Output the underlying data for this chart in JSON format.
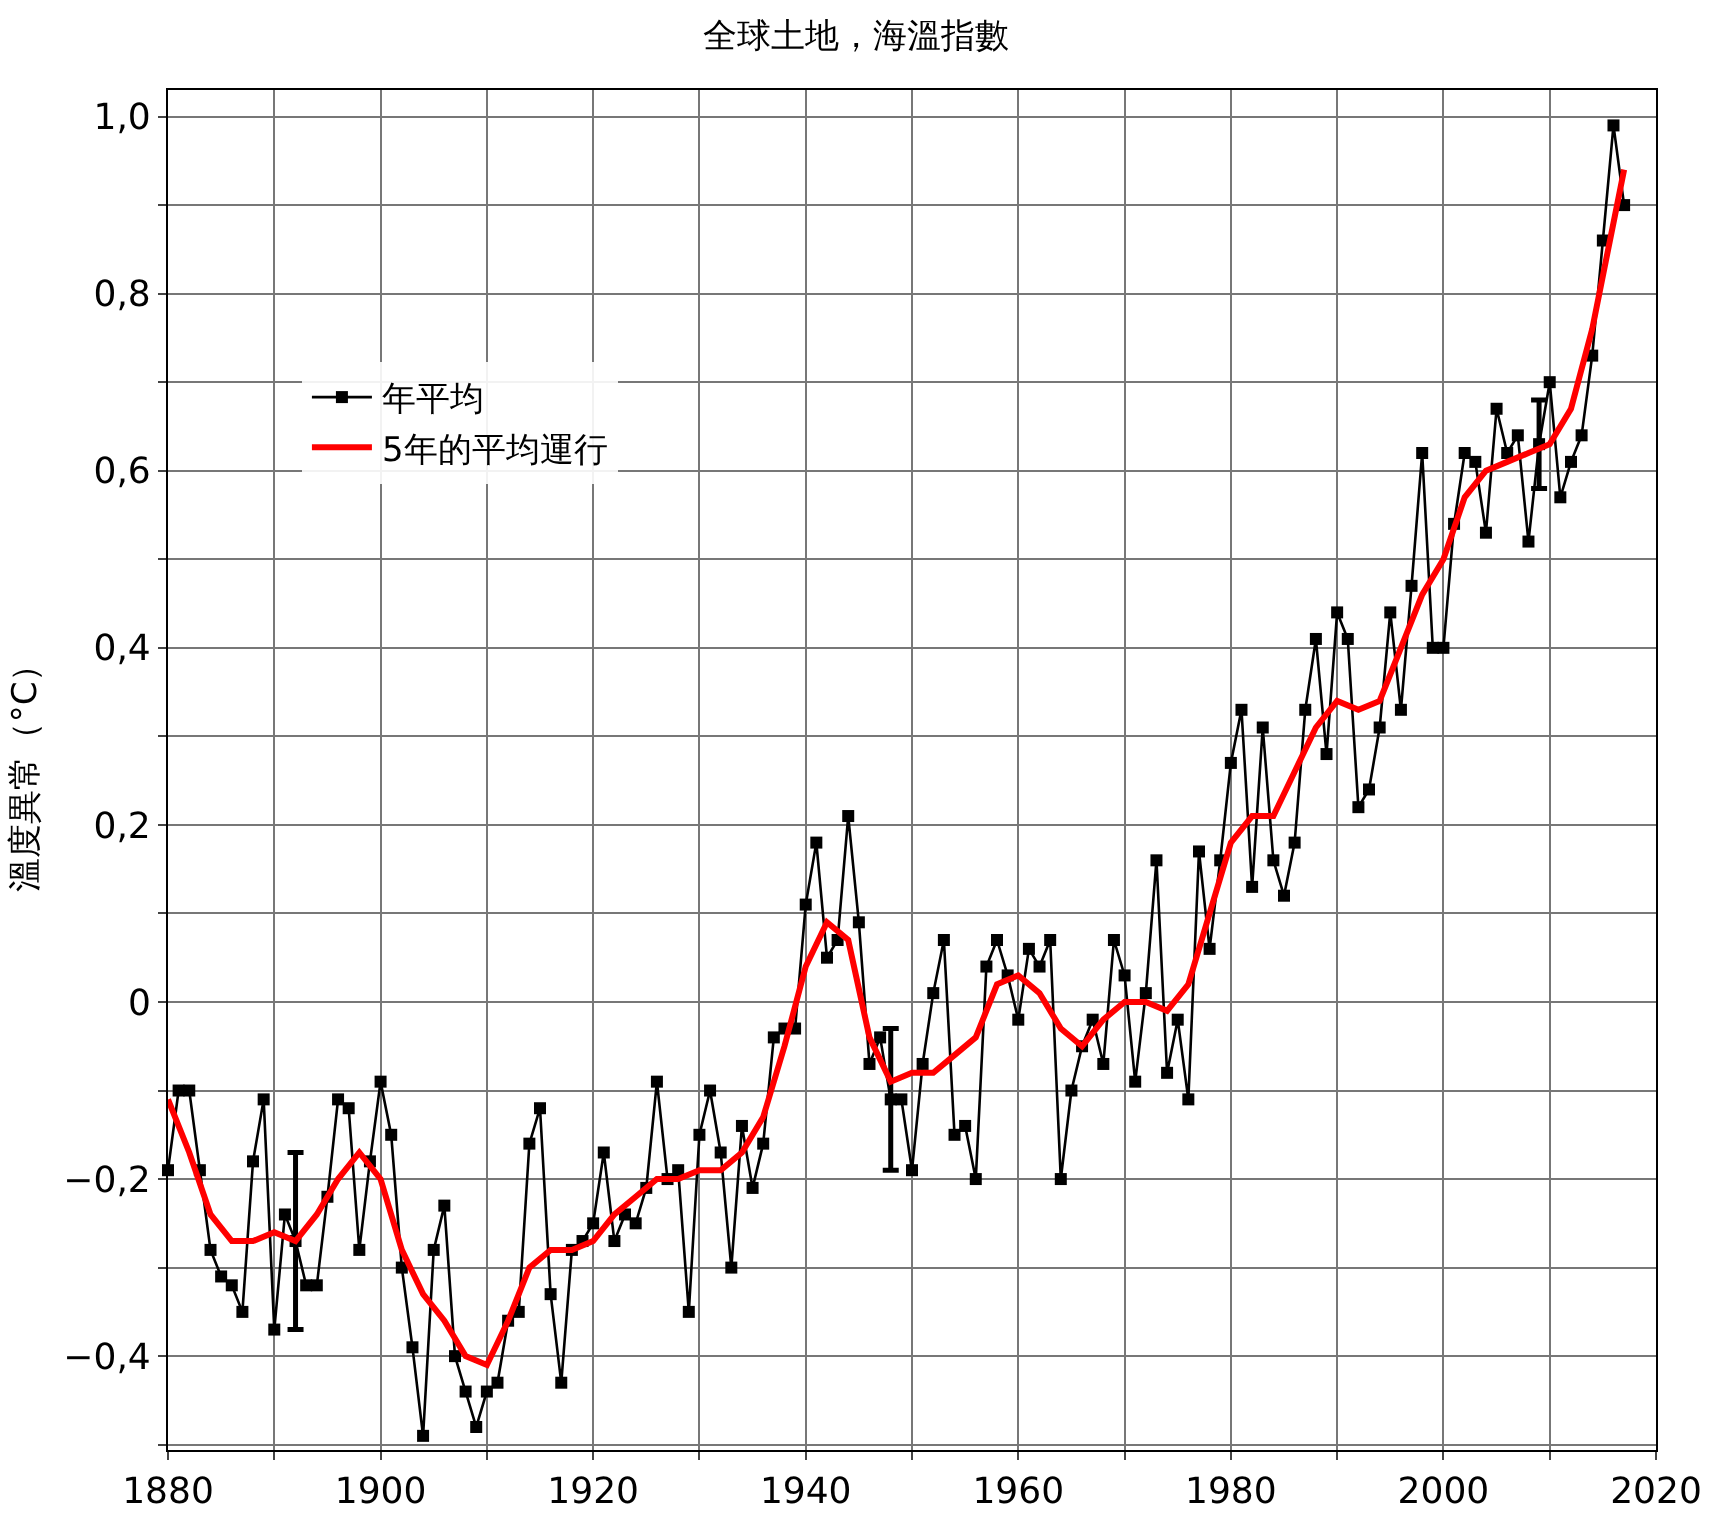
{
  "chart_data": {
    "type": "line",
    "title": "全球土地，海溫指數",
    "ylabel": "溫度異常（°C）",
    "xlim": [
      1880,
      2020
    ],
    "ylim": [
      -0.506,
      1.03
    ],
    "xticks": [
      1880,
      {
        "value": 1890,
        "label": null
      },
      1900,
      {
        "value": 1910,
        "label": null
      },
      1920,
      {
        "value": 1930,
        "label": null
      },
      1940,
      {
        "value": 1950,
        "label": null
      },
      1960,
      {
        "value": 1970,
        "label": null
      },
      1980,
      {
        "value": 1990,
        "label": null
      },
      2000,
      {
        "value": 2010,
        "label": null
      },
      2020
    ],
    "yticks": [
      {
        "value": -0.5,
        "label": null
      },
      {
        "value": -0.4,
        "label": "−0,4"
      },
      {
        "value": -0.3,
        "label": null
      },
      {
        "value": -0.2,
        "label": "−0,2"
      },
      {
        "value": -0.1,
        "label": null
      },
      {
        "value": 0,
        "label": "0"
      },
      {
        "value": 0.1,
        "label": null
      },
      {
        "value": 0.2,
        "label": "0,2"
      },
      {
        "value": 0.3,
        "label": null
      },
      {
        "value": 0.4,
        "label": "0,4"
      },
      {
        "value": 0.5,
        "label": null
      },
      {
        "value": 0.6,
        "label": "0,6"
      },
      {
        "value": 0.7,
        "label": null
      },
      {
        "value": 0.8,
        "label": "0,8"
      },
      {
        "value": 0.9,
        "label": null
      },
      {
        "value": 1.0,
        "label": "1,0"
      }
    ],
    "grid": true,
    "legend": "top left",
    "line_style": "solid",
    "series": [
      {
        "name": "年平均",
        "color": "#000000",
        "marker": "square",
        "x": [
          1880,
          1881,
          1882,
          1883,
          1884,
          1885,
          1886,
          1887,
          1888,
          1889,
          1890,
          1891,
          1892,
          1893,
          1894,
          1895,
          1896,
          1897,
          1898,
          1899,
          1900,
          1901,
          1902,
          1903,
          1904,
          1905,
          1906,
          1907,
          1908,
          1909,
          1910,
          1911,
          1912,
          1913,
          1914,
          1915,
          1916,
          1917,
          1918,
          1919,
          1920,
          1921,
          1922,
          1923,
          1924,
          1925,
          1926,
          1927,
          1928,
          1929,
          1930,
          1931,
          1932,
          1933,
          1934,
          1935,
          1936,
          1937,
          1938,
          1939,
          1940,
          1941,
          1942,
          1943,
          1944,
          1945,
          1946,
          1947,
          1948,
          1949,
          1950,
          1951,
          1952,
          1953,
          1954,
          1955,
          1956,
          1957,
          1958,
          1959,
          1960,
          1961,
          1962,
          1963,
          1964,
          1965,
          1966,
          1967,
          1968,
          1969,
          1970,
          1971,
          1972,
          1973,
          1974,
          1975,
          1976,
          1977,
          1978,
          1979,
          1980,
          1981,
          1982,
          1983,
          1984,
          1985,
          1986,
          1987,
          1988,
          1989,
          1990,
          1991,
          1992,
          1993,
          1994,
          1995,
          1996,
          1997,
          1998,
          1999,
          2000,
          2001,
          2002,
          2003,
          2004,
          2005,
          2006,
          2007,
          2008,
          2009,
          2010,
          2011,
          2012,
          2013,
          2014,
          2015,
          2016,
          2017
        ],
        "values": [
          -0.19,
          -0.1,
          -0.1,
          -0.19,
          -0.28,
          -0.31,
          -0.32,
          -0.35,
          -0.18,
          -0.11,
          -0.37,
          -0.24,
          -0.27,
          -0.32,
          -0.32,
          -0.22,
          -0.11,
          -0.12,
          -0.28,
          -0.18,
          -0.09,
          -0.15,
          -0.3,
          -0.39,
          -0.49,
          -0.28,
          -0.23,
          -0.4,
          -0.44,
          -0.48,
          -0.44,
          -0.43,
          -0.36,
          -0.35,
          -0.16,
          -0.12,
          -0.33,
          -0.43,
          -0.28,
          -0.27,
          -0.25,
          -0.17,
          -0.27,
          -0.24,
          -0.25,
          -0.21,
          -0.09,
          -0.2,
          -0.19,
          -0.35,
          -0.15,
          -0.1,
          -0.17,
          -0.3,
          -0.14,
          -0.21,
          -0.16,
          -0.04,
          -0.03,
          -0.03,
          0.11,
          0.18,
          0.05,
          0.07,
          0.21,
          0.09,
          -0.07,
          -0.04,
          -0.11,
          -0.11,
          -0.19,
          -0.07,
          0.01,
          0.07,
          -0.15,
          -0.14,
          -0.2,
          0.04,
          0.07,
          0.03,
          -0.02,
          0.06,
          0.04,
          0.07,
          -0.2,
          -0.1,
          -0.05,
          -0.02,
          -0.07,
          0.07,
          0.03,
          -0.09,
          0.01,
          0.16,
          -0.08,
          -0.02,
          -0.11,
          0.17,
          0.06,
          0.16,
          0.27,
          0.33,
          0.13,
          0.31,
          0.16,
          0.12,
          0.18,
          0.33,
          0.41,
          0.28,
          0.44,
          0.41,
          0.22,
          0.24,
          0.31,
          0.44,
          0.33,
          0.47,
          0.62,
          0.4,
          0.4,
          0.54,
          0.62,
          0.61,
          0.53,
          0.67,
          0.62,
          0.64,
          0.52,
          0.63,
          0.7,
          0.57,
          0.61,
          0.64,
          0.73,
          0.86,
          0.99,
          0.9
        ],
        "errors": [
          null,
          null,
          null,
          null,
          null,
          null,
          null,
          null,
          null,
          null,
          null,
          null,
          0.1,
          null,
          null,
          null,
          null,
          null,
          null,
          null,
          null,
          null,
          null,
          null,
          null,
          null,
          null,
          null,
          null,
          null,
          null,
          null,
          null,
          null,
          null,
          null,
          null,
          null,
          null,
          null,
          null,
          null,
          null,
          null,
          null,
          null,
          null,
          null,
          null,
          null,
          null,
          null,
          null,
          null,
          null,
          null,
          null,
          null,
          null,
          null,
          null,
          null,
          null,
          null,
          null,
          null,
          null,
          null,
          0.08,
          null,
          null,
          null,
          null,
          null,
          null,
          null,
          null,
          null,
          null,
          null,
          null,
          null,
          null,
          null,
          null,
          null,
          null,
          null,
          null,
          null,
          null,
          null,
          null,
          null,
          null,
          null,
          null,
          null,
          null,
          null,
          null,
          null,
          null,
          null,
          null,
          null,
          null,
          null,
          null,
          null,
          null,
          null,
          null,
          null,
          null,
          null,
          null,
          null,
          null,
          null,
          null,
          null,
          null,
          null,
          null,
          null,
          null,
          null,
          null,
          0.05,
          null,
          null,
          null,
          null,
          null,
          null,
          null,
          null
        ]
      },
      {
        "name": "5年的平均運行",
        "color": "#ff0000",
        "marker": "none",
        "x": [
          1880,
          1882,
          1884,
          1886,
          1888,
          1890,
          1892,
          1894,
          1896,
          1898,
          1900,
          1902,
          1904,
          1906,
          1908,
          1910,
          1912,
          1914,
          1916,
          1918,
          1920,
          1922,
          1924,
          1926,
          1928,
          1930,
          1932,
          1934,
          1936,
          1938,
          1940,
          1942,
          1944,
          1946,
          1948,
          1950,
          1952,
          1954,
          1956,
          1958,
          1960,
          1962,
          1964,
          1966,
          1968,
          1970,
          1972,
          1974,
          1976,
          1978,
          1980,
          1982,
          1984,
          1986,
          1988,
          1990,
          1992,
          1994,
          1996,
          1998,
          2000,
          2002,
          2004,
          2006,
          2008,
          2010,
          2012,
          2014,
          2016,
          2017
        ],
        "values": [
          -0.11,
          -0.17,
          -0.24,
          -0.27,
          -0.27,
          -0.26,
          -0.27,
          -0.24,
          -0.2,
          -0.17,
          -0.2,
          -0.28,
          -0.33,
          -0.36,
          -0.4,
          -0.41,
          -0.36,
          -0.3,
          -0.28,
          -0.28,
          -0.27,
          -0.24,
          -0.22,
          -0.2,
          -0.2,
          -0.19,
          -0.19,
          -0.17,
          -0.13,
          -0.05,
          0.04,
          0.09,
          0.07,
          -0.04,
          -0.09,
          -0.08,
          -0.08,
          -0.06,
          -0.04,
          0.02,
          0.03,
          0.01,
          -0.03,
          -0.05,
          -0.02,
          0.0,
          0.0,
          -0.01,
          0.02,
          0.1,
          0.18,
          0.21,
          0.21,
          0.26,
          0.31,
          0.34,
          0.33,
          0.34,
          0.4,
          0.46,
          0.5,
          0.57,
          0.6,
          0.61,
          0.62,
          0.63,
          0.67,
          0.76,
          0.88,
          0.94
        ]
      }
    ]
  }
}
